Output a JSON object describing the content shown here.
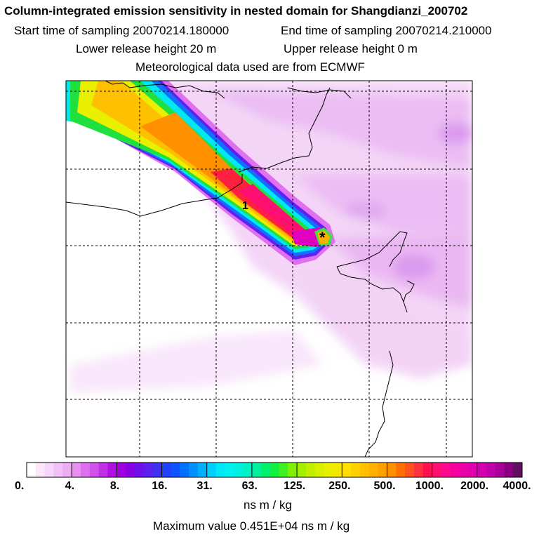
{
  "header": {
    "title": "Column-integrated emission sensitivity in nested domain for Shangdianzi_200702",
    "start": "Start time of sampling 20070214.180000",
    "end": "End time of sampling 20070214.210000",
    "lower": "Lower release height   20 m",
    "upper": "Upper release height    0 m",
    "met": "Meteorological data used are from ECMWF"
  },
  "chart_data": {
    "type": "heatmap",
    "title": "Column-integrated emission sensitivity in nested domain for Shangdianzi_200702",
    "plume_label": "1",
    "receptor_marker": "*",
    "colorbar": {
      "ticks": [
        "0.",
        "4.",
        "8.",
        "16.",
        "31.",
        "63.",
        "125.",
        "250.",
        "500.",
        "1000.",
        "2000.",
        "4000."
      ],
      "tick_values": [
        0,
        4,
        8,
        16,
        31,
        63,
        125,
        250,
        500,
        1000,
        2000,
        4000
      ],
      "units": "ns m / kg"
    },
    "max_value": "Maximum value  0.451E+04 ns m / kg",
    "grid": true
  },
  "colors": {
    "pink_light": "#f2c8f6",
    "magenta": "#e040f0",
    "purple": "#a000e0",
    "blue": "#2060ff",
    "cyan": "#00f0f0",
    "green": "#20e030",
    "yellow": "#f0e000",
    "orange": "#ffa000",
    "red": "#ff2060",
    "darkmagenta": "#c000a0"
  }
}
